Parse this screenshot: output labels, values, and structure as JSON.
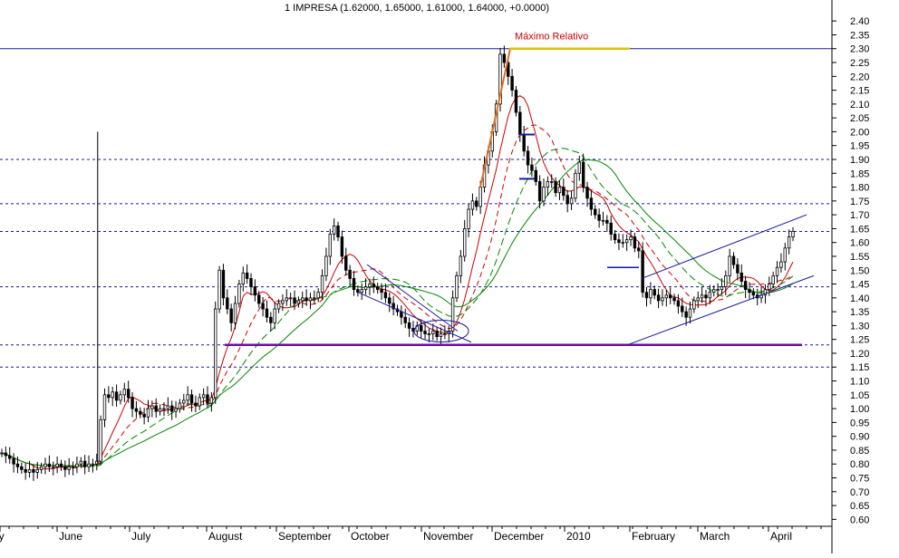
{
  "chart_data": {
    "type": "candlestick",
    "title": "1 IMPRESA (1.62000, 1.65000, 1.61000, 1.64000, +0.0000)",
    "annotation": "Máximo Relativo",
    "x_labels": [
      "ay",
      "June",
      "July",
      "August",
      "September",
      "October",
      "November",
      "December",
      "2010",
      "February",
      "March",
      "April"
    ],
    "y_ticks": [
      0.6,
      0.65,
      0.7,
      0.75,
      0.8,
      0.85,
      0.9,
      0.95,
      1.0,
      1.05,
      1.1,
      1.15,
      1.2,
      1.25,
      1.3,
      1.35,
      1.4,
      1.45,
      1.5,
      1.55,
      1.6,
      1.65,
      1.7,
      1.75,
      1.8,
      1.85,
      1.9,
      1.95,
      2.0,
      2.05,
      2.1,
      2.15,
      2.2,
      2.25,
      2.3,
      2.35,
      2.4
    ],
    "ylim": [
      0.575,
      2.43
    ],
    "grid": "dotted horizontal at key levels",
    "horizontal_levels": [
      2.3,
      1.9,
      1.74,
      1.64,
      1.44,
      1.23,
      1.15
    ],
    "support_line": 1.23,
    "closes": [
      0.84,
      0.83,
      0.82,
      0.8,
      0.79,
      0.78,
      0.77,
      0.78,
      0.77,
      0.78,
      0.79,
      0.8,
      0.79,
      0.79,
      0.8,
      0.79,
      0.78,
      0.79,
      0.79,
      0.8,
      0.81,
      0.79,
      0.8,
      0.8,
      0.81,
      0.96,
      1.05,
      1.04,
      1.06,
      1.03,
      1.05,
      1.07,
      1.04,
      1.0,
      0.99,
      0.98,
      0.97,
      1.0,
      1.01,
      0.99,
      1.0,
      1.0,
      1.01,
      0.99,
      1.0,
      1.02,
      1.03,
      1.05,
      1.02,
      1.01,
      1.04,
      1.05,
      1.02,
      1.04,
      1.36,
      1.5,
      1.4,
      1.36,
      1.31,
      1.38,
      1.45,
      1.49,
      1.47,
      1.44,
      1.41,
      1.38,
      1.36,
      1.33,
      1.31,
      1.36,
      1.38,
      1.39,
      1.4,
      1.4,
      1.38,
      1.39,
      1.4,
      1.39,
      1.4,
      1.4,
      1.42,
      1.48,
      1.55,
      1.63,
      1.66,
      1.62,
      1.55,
      1.5,
      1.47,
      1.43,
      1.42,
      1.43,
      1.44,
      1.45,
      1.44,
      1.43,
      1.42,
      1.4,
      1.38,
      1.36,
      1.35,
      1.33,
      1.31,
      1.29,
      1.28,
      1.3,
      1.28,
      1.27,
      1.27,
      1.28,
      1.26,
      1.27,
      1.27,
      1.28,
      1.4,
      1.48,
      1.55,
      1.65,
      1.72,
      1.75,
      1.73,
      1.8,
      1.88,
      1.93,
      2.0,
      2.1,
      2.28,
      2.25,
      2.2,
      2.15,
      2.07,
      1.99,
      1.93,
      1.88,
      1.86,
      1.82,
      1.75,
      1.8,
      1.82,
      1.82,
      1.78,
      1.8,
      1.77,
      1.74,
      1.76,
      1.85,
      1.89,
      1.8,
      1.76,
      1.72,
      1.7,
      1.68,
      1.68,
      1.67,
      1.63,
      1.61,
      1.6,
      1.6,
      1.61,
      1.62,
      1.58,
      1.57,
      1.42,
      1.4,
      1.43,
      1.41,
      1.39,
      1.4,
      1.41,
      1.4,
      1.39,
      1.37,
      1.35,
      1.33,
      1.36,
      1.39,
      1.4,
      1.41,
      1.4,
      1.42,
      1.43,
      1.43,
      1.44,
      1.48,
      1.55,
      1.52,
      1.49,
      1.46,
      1.43,
      1.42,
      1.41,
      1.4,
      1.41,
      1.43,
      1.45,
      1.48,
      1.51,
      1.53,
      1.58,
      1.62,
      1.64
    ]
  }
}
